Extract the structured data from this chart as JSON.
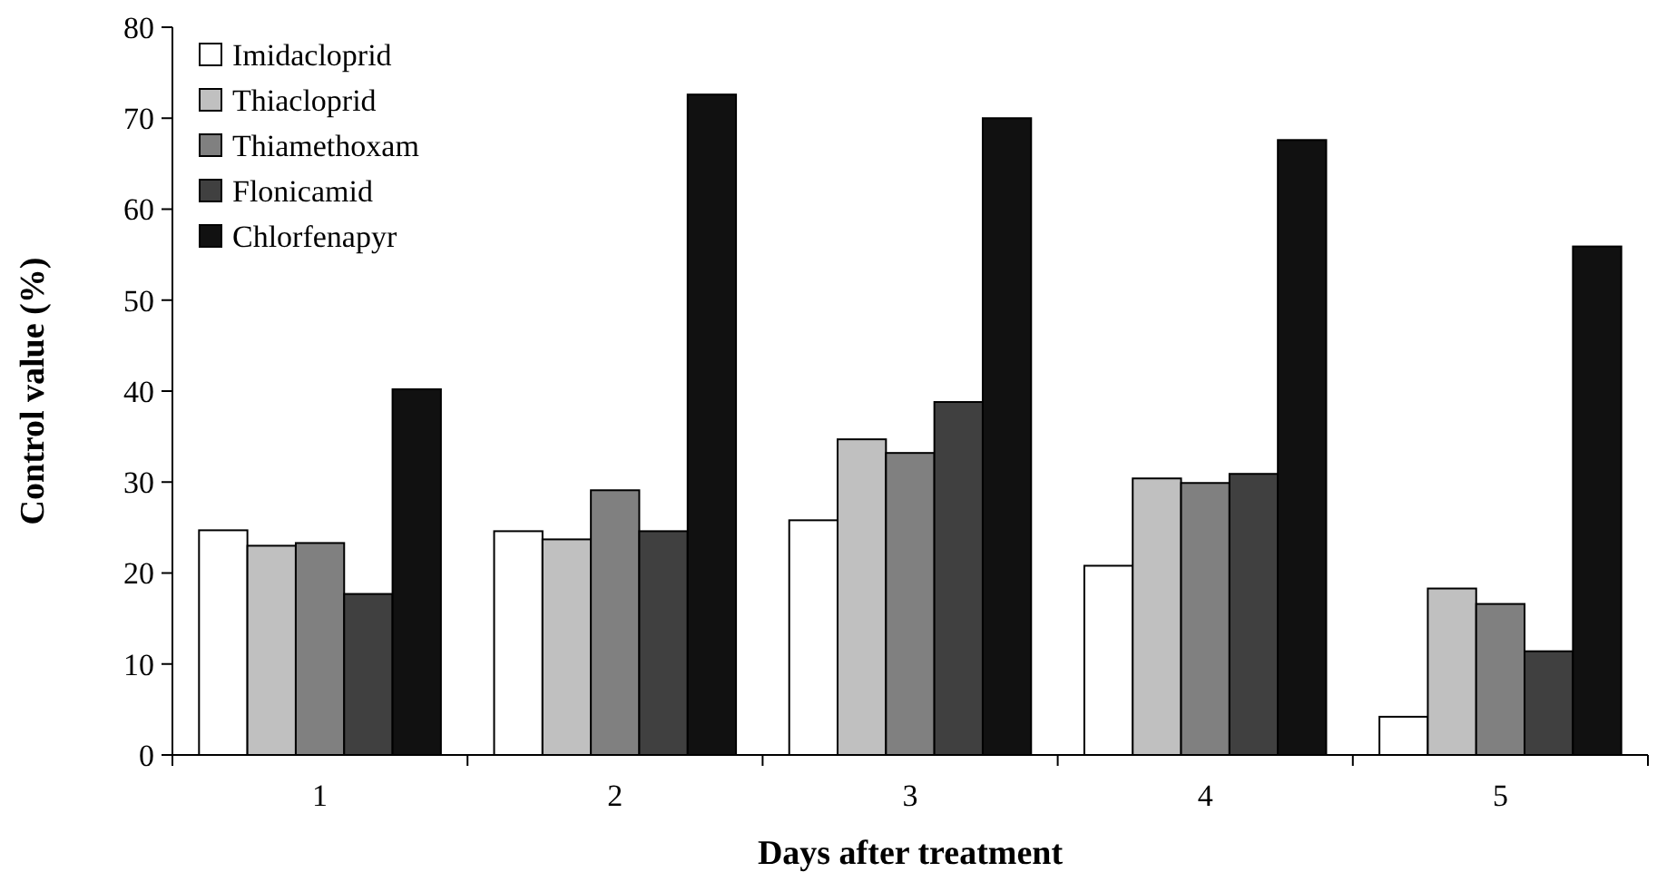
{
  "chart_data": {
    "type": "bar",
    "xlabel": "Days after treatment",
    "ylabel": "Control value (%)",
    "categories": [
      "1",
      "2",
      "3",
      "4",
      "5"
    ],
    "series": [
      {
        "name": "Imidacloprid",
        "color": "#ffffff",
        "values": [
          24.7,
          24.6,
          25.8,
          20.8,
          4.2
        ]
      },
      {
        "name": "Thiacloprid",
        "color": "#c0c0c0",
        "values": [
          23.0,
          23.7,
          34.7,
          30.4,
          18.3
        ]
      },
      {
        "name": "Thiamethoxam",
        "color": "#808080",
        "values": [
          23.3,
          29.1,
          33.2,
          29.9,
          16.6
        ]
      },
      {
        "name": "Flonicamid",
        "color": "#404040",
        "values": [
          17.7,
          24.6,
          38.8,
          30.9,
          11.4
        ]
      },
      {
        "name": "Chlorfenapyr",
        "color": "#111111",
        "values": [
          40.2,
          72.6,
          70.0,
          67.6,
          55.9
        ]
      }
    ],
    "ylim": [
      0,
      80
    ],
    "yticks": [
      0,
      10,
      20,
      30,
      40,
      50,
      60,
      70,
      80
    ],
    "legend": "top left"
  }
}
